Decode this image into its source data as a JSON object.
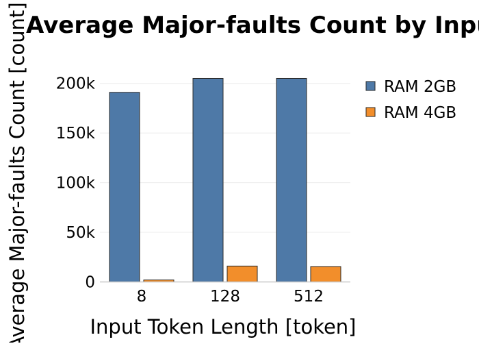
{
  "chart_data": {
    "type": "bar",
    "title": "Average Major-faults Count by Input Token Length",
    "xlabel": "Input Token Length [token]",
    "ylabel": "Average Major-faults Count [count]",
    "categories": [
      "8",
      "128",
      "512"
    ],
    "series": [
      {
        "name": "RAM 2GB",
        "color": "#4e79a7",
        "values": [
          191000,
          205000,
          205000
        ]
      },
      {
        "name": "RAM 4GB",
        "color": "#f28e2b",
        "values": [
          2000,
          16000,
          15500
        ]
      }
    ],
    "ylim": [
      0,
      215000
    ],
    "yticks": [
      0,
      50000,
      100000,
      150000,
      200000
    ],
    "ytick_labels": [
      "0",
      "50k",
      "100k",
      "150k",
      "200k"
    ],
    "grid": true,
    "legend_position": "top-right"
  }
}
